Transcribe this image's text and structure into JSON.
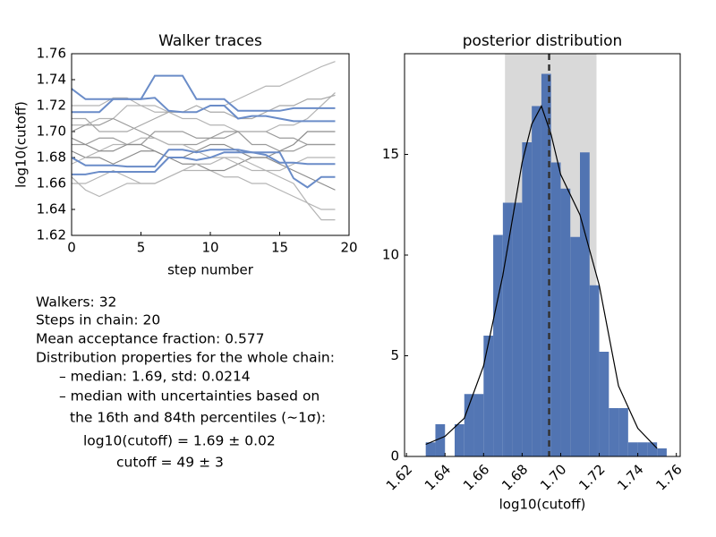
{
  "chart_data": [
    {
      "type": "line",
      "title": "Walker traces",
      "x_label": "step number",
      "y_label": "log10(cutoff)",
      "x": [
        0,
        1,
        2,
        3,
        4,
        5,
        6,
        7,
        8,
        9,
        10,
        11,
        12,
        13,
        14,
        15,
        16,
        17,
        18,
        19
      ],
      "xlim": [
        0,
        20
      ],
      "xticks": [
        0,
        5,
        10,
        15,
        20
      ],
      "ylim": [
        1.62,
        1.76
      ],
      "yticks": [
        1.62,
        1.64,
        1.66,
        1.68,
        {
          "value": 1.7,
          "label": "1.70"
        },
        1.72,
        1.74,
        1.76
      ],
      "series": [
        {
          "color": "#b4b4b4",
          "values": [
            1.705,
            1.705,
            1.71,
            1.71,
            1.72,
            1.72,
            1.72,
            1.715,
            1.715,
            1.715,
            1.72,
            1.72,
            1.725,
            1.73,
            1.735,
            1.735,
            1.74,
            1.745,
            1.75,
            1.754
          ]
        },
        {
          "color": "#9a9a9a",
          "values": [
            1.69,
            1.69,
            1.695,
            1.695,
            1.69,
            1.69,
            1.7,
            1.7,
            1.7,
            1.695,
            1.695,
            1.695,
            1.7,
            1.7,
            1.7,
            1.695,
            1.695,
            1.69,
            1.69,
            1.69
          ]
        },
        {
          "color": "#b4b4b4",
          "values": [
            1.66,
            1.66,
            1.665,
            1.67,
            1.665,
            1.66,
            1.66,
            1.665,
            1.67,
            1.67,
            1.67,
            1.665,
            1.665,
            1.66,
            1.66,
            1.655,
            1.65,
            1.645,
            1.632,
            1.632
          ]
        },
        {
          "color": "#b4b4b4",
          "values": [
            1.72,
            1.72,
            1.72,
            1.726,
            1.726,
            1.72,
            1.715,
            1.715,
            1.71,
            1.71,
            1.705,
            1.705,
            1.7,
            1.7,
            1.7,
            1.705,
            1.705,
            1.71,
            1.72,
            1.73
          ]
        },
        {
          "color": "#8c8c8c",
          "values": [
            1.685,
            1.68,
            1.68,
            1.675,
            1.68,
            1.685,
            1.685,
            1.68,
            1.675,
            1.675,
            1.67,
            1.67,
            1.675,
            1.68,
            1.68,
            1.675,
            1.67,
            1.665,
            1.66,
            1.655
          ]
        },
        {
          "color": "#9a9a9a",
          "values": [
            1.7,
            1.705,
            1.705,
            1.71,
            1.705,
            1.7,
            1.695,
            1.69,
            1.69,
            1.69,
            1.695,
            1.7,
            1.7,
            1.69,
            1.69,
            1.685,
            1.685,
            1.69,
            1.69,
            1.69
          ]
        },
        {
          "color": "#b4b4b4",
          "values": [
            1.675,
            1.68,
            1.685,
            1.69,
            1.69,
            1.695,
            1.695,
            1.69,
            1.69,
            1.685,
            1.68,
            1.68,
            1.675,
            1.67,
            1.67,
            1.665,
            1.66,
            1.645,
            1.64,
            1.64
          ]
        },
        {
          "color": "#a8a8a8",
          "values": [
            1.71,
            1.71,
            1.7,
            1.7,
            1.7,
            1.705,
            1.71,
            1.715,
            1.715,
            1.72,
            1.715,
            1.715,
            1.71,
            1.71,
            1.715,
            1.72,
            1.72,
            1.725,
            1.725,
            1.728
          ]
        },
        {
          "color": "#8c8c8c",
          "values": [
            1.695,
            1.69,
            1.685,
            1.685,
            1.69,
            1.69,
            1.685,
            1.68,
            1.68,
            1.685,
            1.69,
            1.69,
            1.685,
            1.68,
            1.68,
            1.685,
            1.69,
            1.7,
            1.7,
            1.7
          ]
        },
        {
          "color": "#b4b4b4",
          "values": [
            1.665,
            1.655,
            1.65,
            1.655,
            1.66,
            1.66,
            1.66,
            1.665,
            1.67,
            1.675,
            1.675,
            1.68,
            1.68,
            1.675,
            1.67,
            1.67,
            1.675,
            1.68,
            1.68,
            1.68
          ]
        },
        {
          "color": "#6a8cc8",
          "values": [
            1.733,
            1.725,
            1.725,
            1.725,
            1.725,
            1.725,
            1.743,
            1.743,
            1.743,
            1.725,
            1.725,
            1.725,
            1.716,
            1.716,
            1.716,
            1.716,
            1.718,
            1.718,
            1.718,
            1.718
          ]
        },
        {
          "color": "#6a8cc8",
          "values": [
            1.715,
            1.715,
            1.715,
            1.725,
            1.725,
            1.725,
            1.726,
            1.716,
            1.715,
            1.715,
            1.72,
            1.72,
            1.71,
            1.712,
            1.712,
            1.71,
            1.708,
            1.708,
            1.708,
            1.708
          ]
        },
        {
          "color": "#6a8cc8",
          "values": [
            1.68,
            1.674,
            1.674,
            1.674,
            1.673,
            1.673,
            1.673,
            1.686,
            1.686,
            1.684,
            1.686,
            1.686,
            1.686,
            1.684,
            1.682,
            1.676,
            1.676,
            1.675,
            1.675,
            1.675
          ]
        },
        {
          "color": "#6a8cc8",
          "values": [
            1.667,
            1.667,
            1.669,
            1.669,
            1.669,
            1.669,
            1.669,
            1.68,
            1.68,
            1.678,
            1.68,
            1.684,
            1.684,
            1.684,
            1.684,
            1.684,
            1.664,
            1.657,
            1.665,
            1.665
          ]
        }
      ]
    },
    {
      "type": "histogram",
      "title": "posterior distribution",
      "x_label": "log10(cutoff)",
      "bins": [
        1.63,
        1.635,
        1.64,
        1.645,
        1.65,
        1.655,
        1.66,
        1.665,
        1.67,
        1.675,
        1.68,
        1.685,
        1.69,
        1.695,
        1.7,
        1.705,
        1.71,
        1.715,
        1.72,
        1.725,
        1.73,
        1.735,
        1.74,
        1.745,
        1.75,
        1.755
      ],
      "values": [
        0.7,
        1.6,
        0,
        1.6,
        3.1,
        3.1,
        6.0,
        11.0,
        12.6,
        12.6,
        15.6,
        17.4,
        19.0,
        14.6,
        13.3,
        10.9,
        15.1,
        8.5,
        5.2,
        2.4,
        2.4,
        0.7,
        0.7,
        0.7,
        0.4
      ],
      "color": "#4a6fb0",
      "kde": {
        "color": "#000000",
        "x": [
          1.63,
          1.64,
          1.65,
          1.66,
          1.67,
          1.68,
          1.685,
          1.69,
          1.695,
          1.7,
          1.71,
          1.72,
          1.73,
          1.74,
          1.75
        ],
        "values": [
          0.6,
          1.0,
          1.9,
          4.5,
          9.0,
          14.6,
          16.5,
          17.4,
          16.0,
          14.0,
          12.0,
          8.5,
          3.5,
          1.4,
          0.4
        ]
      },
      "span": [
        1.6711,
        1.7186
      ],
      "span_color": "#d9d9d9",
      "median": 1.694,
      "median_color": "#333333",
      "xlim": [
        1.619,
        1.762
      ],
      "xticks": [
        1.62,
        1.64,
        1.66,
        1.68,
        {
          "value": 1.7,
          "label": "1.70"
        },
        1.72,
        1.74,
        1.76
      ],
      "ylim": [
        0,
        20
      ],
      "yticks": [
        0,
        5,
        10,
        15
      ]
    }
  ],
  "info": {
    "lines": [
      "Walkers: 32",
      "Steps in chain: 20",
      "Mean acceptance fraction: 0.577",
      "Distribution properties for the whole chain:",
      "– median: 1.69, std: 0.0214",
      "– median with uncertainties based on",
      "the 16th and 84th percentiles (∼1σ):",
      "log10(cutoff) = 1.69 ± 0.02",
      "cutoff = 49 ± 3"
    ]
  }
}
